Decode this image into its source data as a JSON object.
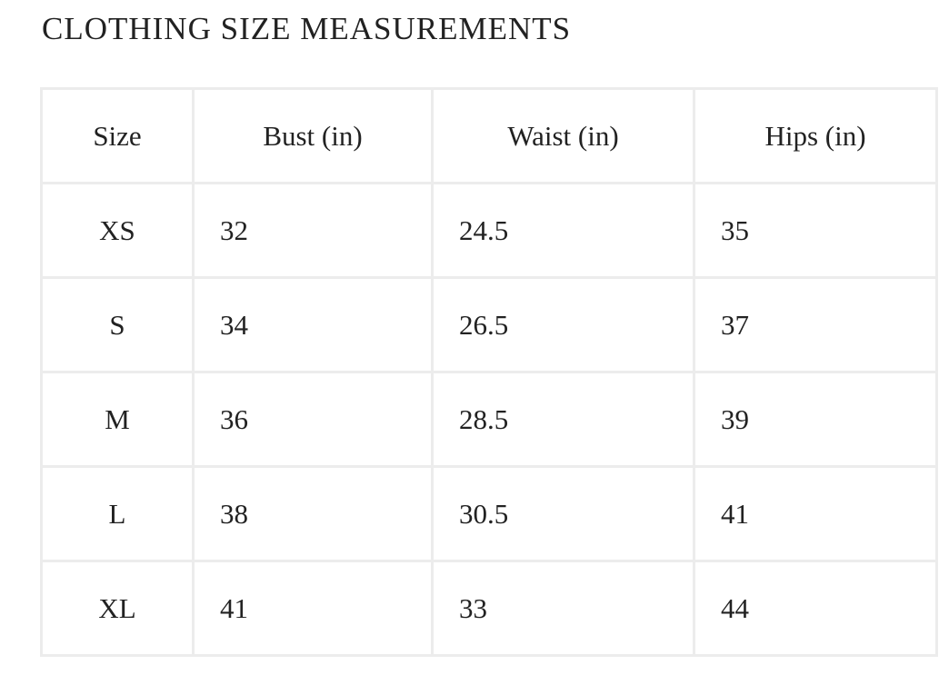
{
  "header": {
    "title": "CLOTHING SIZE MEASUREMENTS"
  },
  "table": {
    "columns": [
      "Size",
      "Bust (in)",
      "Waist (in)",
      "Hips (in)"
    ],
    "rows": [
      [
        "XS",
        32,
        24.5,
        35
      ],
      [
        "S",
        34,
        26.5,
        37
      ],
      [
        "M",
        36,
        28.5,
        39
      ],
      [
        "L",
        38,
        30.5,
        41
      ],
      [
        "XL",
        41,
        33,
        44
      ]
    ]
  }
}
